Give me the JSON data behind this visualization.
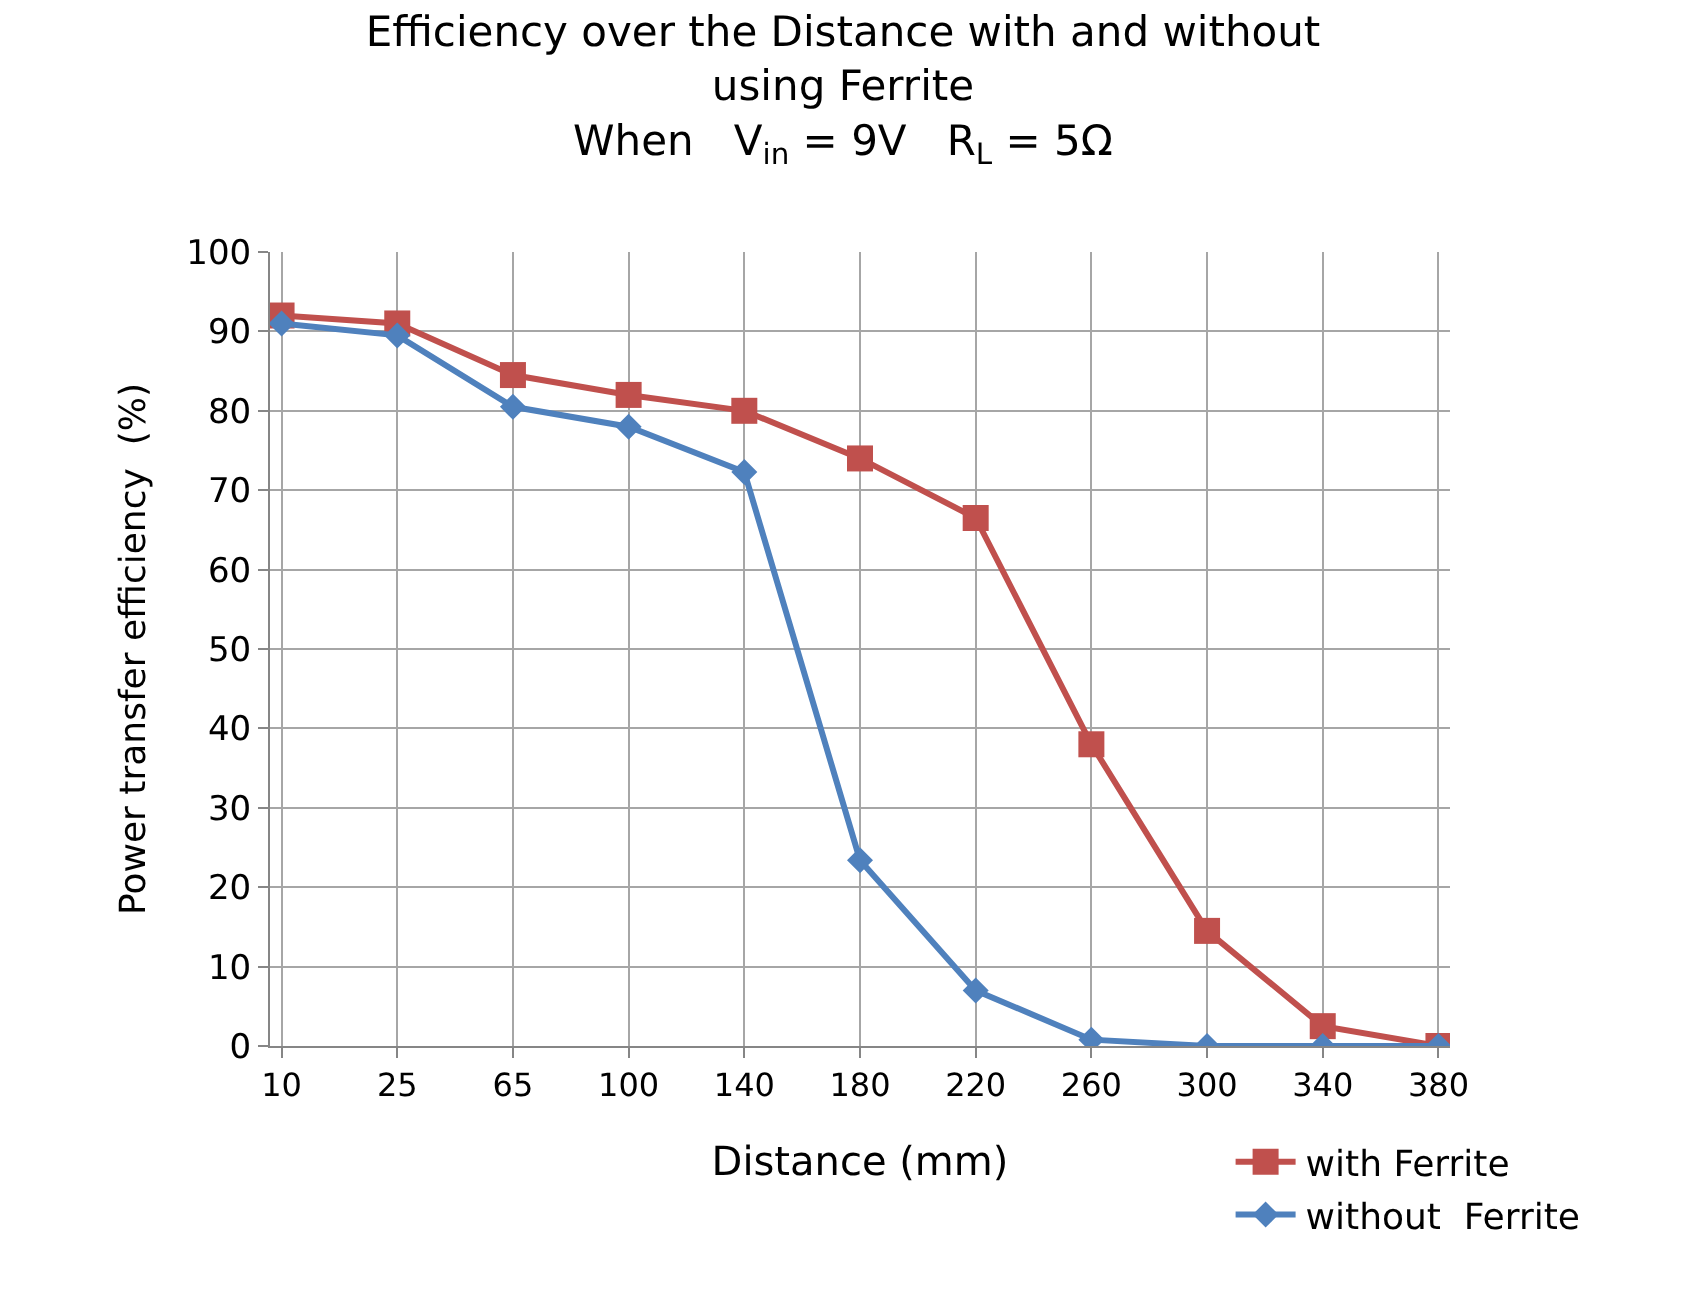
{
  "chart_data": {
    "type": "line",
    "title": "Efficiency over the Distance with and without using Ferrite",
    "subtitle": "When   V$_{in}$ = 9V   R$_{L}$ = 5Ω",
    "xlabel": "Distance (mm)",
    "ylabel": "Power transfer efficiency  (%)",
    "categories": [
      "10",
      "25",
      "65",
      "100",
      "140",
      "180",
      "220",
      "260",
      "300",
      "340",
      "380"
    ],
    "series": [
      {
        "name": "with Ferrite",
        "color": "#c0504d",
        "marker": "square",
        "values": [
          92,
          91,
          84.5,
          82,
          80,
          74,
          66.5,
          38,
          14.5,
          2.5,
          0
        ]
      },
      {
        "name": "without  Ferrite",
        "color": "#4f81bd",
        "marker": "diamond",
        "values": [
          91,
          89.5,
          80.5,
          78,
          72.3,
          23.4,
          7,
          0.8,
          0,
          0,
          0
        ]
      }
    ],
    "ylim": [
      0,
      100
    ],
    "yticks": [
      0,
      10,
      20,
      30,
      40,
      50,
      60,
      70,
      80,
      90,
      100
    ],
    "grid": true,
    "legend": "bottom right",
    "line_style": "solid"
  }
}
